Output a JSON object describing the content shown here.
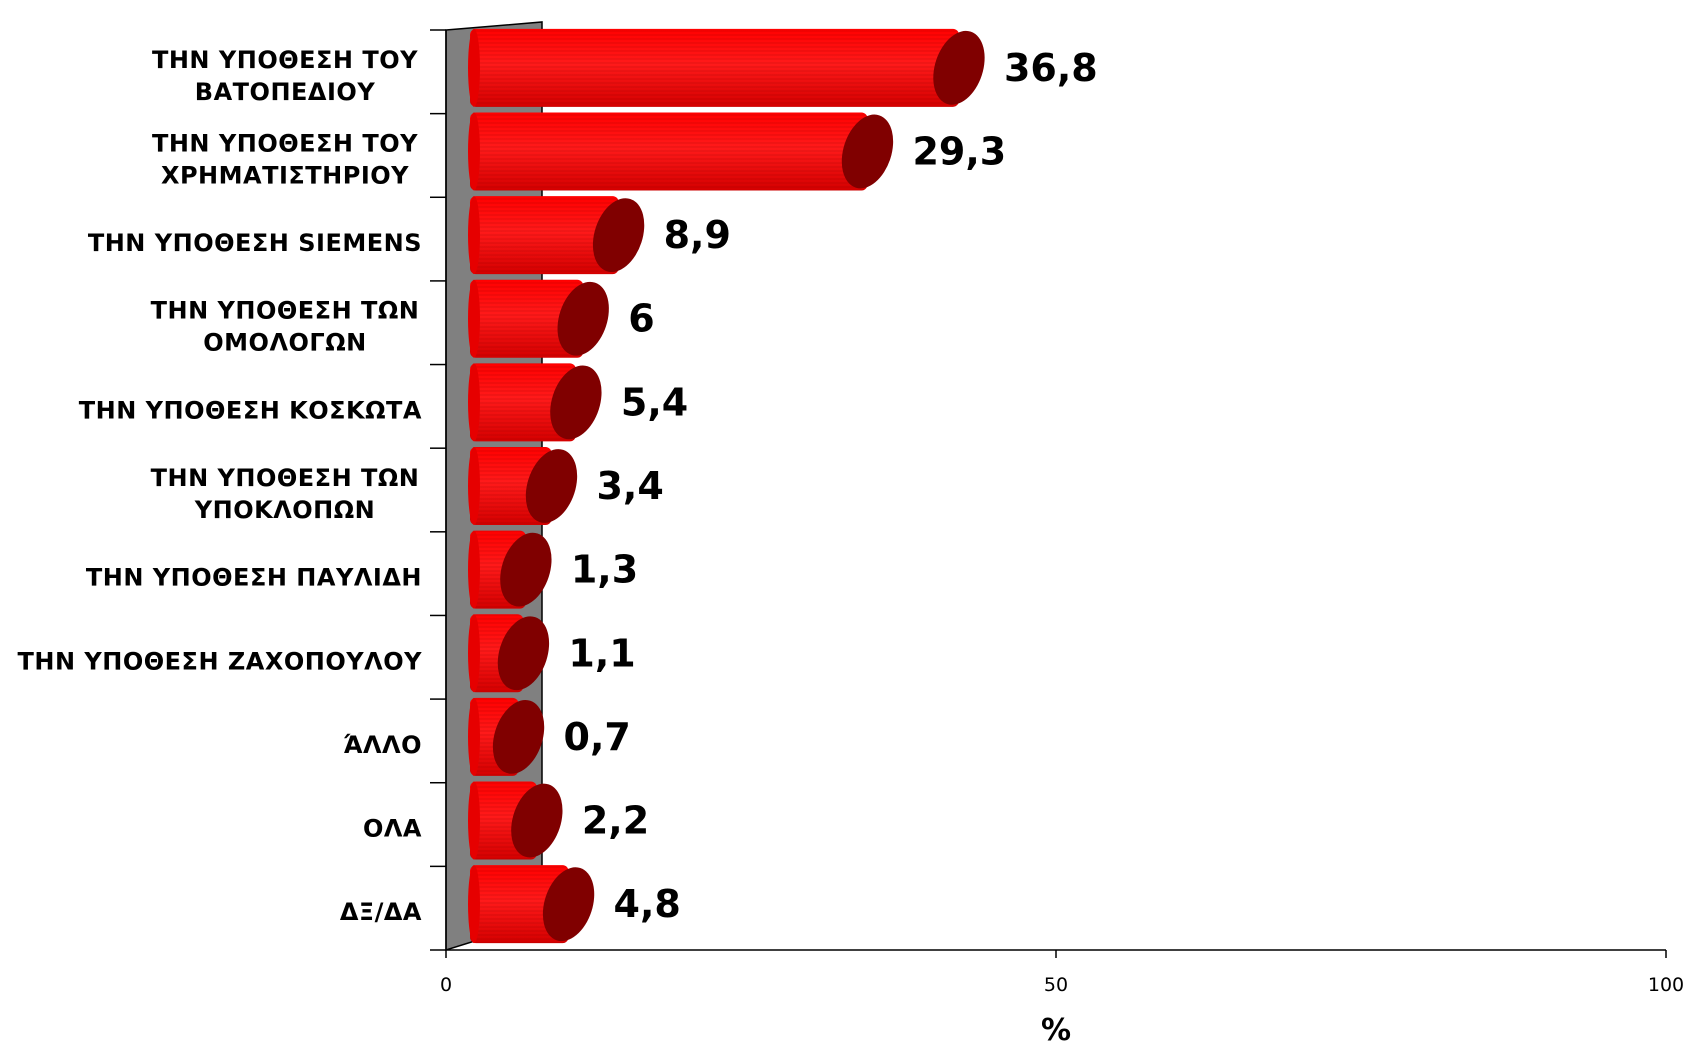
{
  "chart_data": {
    "type": "bar",
    "orientation": "horizontal",
    "style": "3d-cylinder",
    "categories": [
      [
        "ΤΗΝ ΥΠΟΘΕΣΗ ΤΟΥ",
        "ΒΑΤΟΠΕΔΙΟΥ"
      ],
      [
        "ΤΗΝ ΥΠΟΘΕΣΗ ΤΟΥ",
        "ΧΡΗΜΑΤΙΣΤΗΡΙΟΥ"
      ],
      [
        "ΤΗΝ ΥΠΟΘΕΣΗ SIEMENS"
      ],
      [
        "ΤΗΝ ΥΠΟΘΕΣΗ ΤΩΝ",
        "ΟΜΟΛΟΓΩΝ"
      ],
      [
        "ΤΗΝ ΥΠΟΘΕΣΗ ΚΟΣΚΩΤΑ"
      ],
      [
        "ΤΗΝ ΥΠΟΘΕΣΗ ΤΩΝ",
        "ΥΠΟΚΛΟΠΩΝ"
      ],
      [
        "ΤΗΝ ΥΠΟΘΕΣΗ ΠΑΥΛΙΔΗ"
      ],
      [
        "ΤΗΝ ΥΠΟΘΕΣΗ ΖΑΧΟΠΟΥΛΟΥ"
      ],
      [
        "ΆΛΛΟ"
      ],
      [
        "ΟΛΑ"
      ],
      [
        "ΔΞ/ΔΑ"
      ]
    ],
    "values": [
      36.8,
      29.3,
      8.9,
      6,
      5.4,
      3.4,
      1.3,
      1.1,
      0.7,
      2.2,
      4.8
    ],
    "value_labels": [
      "36,8",
      "29,3",
      "8,9",
      "6",
      "5,4",
      "3,4",
      "1,3",
      "1,1",
      "0,7",
      "2,2",
      "4,8"
    ],
    "xlim": [
      0,
      100
    ],
    "xticks": [
      "0",
      "50",
      "100"
    ],
    "xlabel": "%",
    "ylabel": "",
    "title": "",
    "grid": false,
    "colors": {
      "bar": "#ff0000",
      "bar_dark": "#cc0000",
      "bar_cap": "#800000",
      "wall": "#808080"
    }
  }
}
